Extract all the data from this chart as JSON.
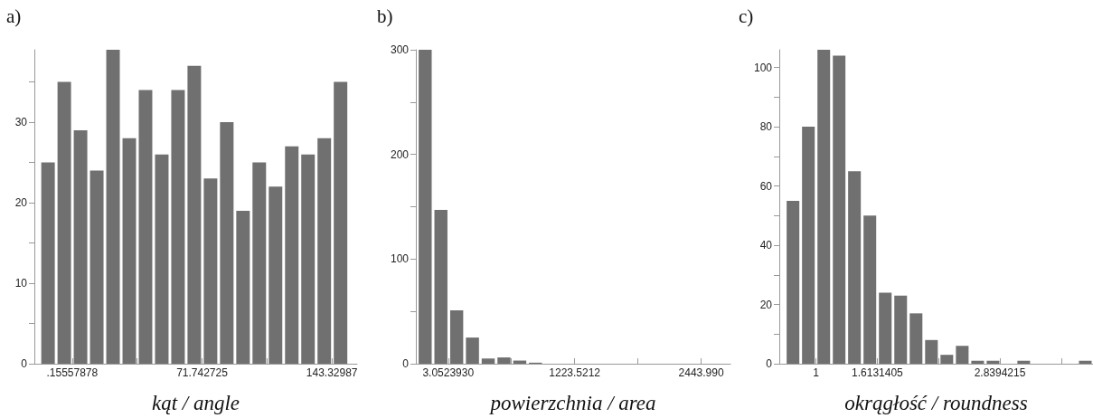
{
  "chart_data": [
    {
      "type": "histogram",
      "title": "a)",
      "xlabel": "kąt / angle",
      "color": "#707070",
      "bins": [
        -17.64,
        -8.68,
        0.27,
        9.23,
        18.19,
        27.15,
        36.1,
        45.06,
        54.02,
        62.97,
        71.93,
        80.89,
        89.85,
        98.8,
        107.76,
        116.72,
        125.67,
        134.63,
        143.59,
        152.55
      ],
      "values": [
        25,
        35,
        29,
        24,
        39,
        28,
        34,
        26,
        34,
        37,
        23,
        30,
        19,
        25,
        22,
        27,
        26,
        28,
        35
      ],
      "xlim": [
        -20.7,
        157.2
      ],
      "xticks": [
        {
          "value": 0.15557878,
          "label": ".15557878"
        },
        {
          "value": 35.94915,
          "label": null
        },
        {
          "value": 71.742725,
          "label": "71.742725"
        },
        {
          "value": 107.5363,
          "label": null
        },
        {
          "value": 143.32987,
          "label": "143.32987"
        }
      ],
      "ylim": [
        0,
        39
      ],
      "yticks": [
        0,
        {
          "value": 5,
          "label": null
        },
        10,
        {
          "value": 15,
          "label": null
        },
        20,
        {
          "value": 25,
          "label": null
        },
        30,
        {
          "value": 35,
          "label": null
        }
      ],
      "grid": false
    },
    {
      "type": "histogram",
      "title": "b)",
      "xlabel": "powierzchnia / area",
      "color": "#707070",
      "bins": [
        -295.3,
        -143.2,
        8.9,
        161.0,
        313.1,
        465.2,
        617.3,
        769.4,
        921.5
      ],
      "values": [
        300,
        147,
        51,
        25,
        5,
        6,
        3,
        1
      ],
      "xlim": [
        -309,
        2727
      ],
      "xticks": [
        {
          "value": 3.052393,
          "label": "3.0523930"
        },
        {
          "value": 613.29,
          "label": null
        },
        {
          "value": 1223.5212,
          "label": "1223.5212"
        },
        {
          "value": 1833.75,
          "label": null
        },
        {
          "value": 2443.99,
          "label": "2443.990"
        }
      ],
      "ylim": [
        0,
        300
      ],
      "yticks": [
        0,
        {
          "value": 50,
          "label": null
        },
        100,
        {
          "value": 150,
          "label": null
        },
        200,
        {
          "value": 250,
          "label": null
        },
        300
      ],
      "grid": false
    },
    {
      "type": "histogram",
      "title": "c)",
      "xlabel": "okrągłość / roundness",
      "color": "#707070",
      "bins": [
        0.693,
        0.847,
        1.001,
        1.155,
        1.308,
        1.462,
        1.616,
        1.77,
        1.924,
        2.078,
        2.232,
        2.386,
        2.54,
        2.694,
        2.848,
        3.001,
        3.155,
        3.309,
        3.463,
        3.617,
        3.771
      ],
      "values": [
        55,
        80,
        106,
        104,
        65,
        50,
        24,
        23,
        17,
        8,
        3,
        6,
        1,
        1,
        0,
        1,
        0,
        0,
        0,
        1
      ],
      "xlim": [
        0.633,
        3.771
      ],
      "xticks": [
        1,
        {
          "value": 1.6131405,
          "label": "1.6131405"
        },
        {
          "value": 2.226281,
          "label": null
        },
        {
          "value": 2.8394215,
          "label": "2.8394215"
        },
        {
          "value": 3.452562,
          "label": null
        }
      ],
      "ylim": [
        0,
        106
      ],
      "yticks": [
        0,
        {
          "value": 10,
          "label": null
        },
        20,
        {
          "value": 30,
          "label": null
        },
        40,
        {
          "value": 50,
          "label": null
        },
        60,
        {
          "value": 70,
          "label": null
        },
        80,
        {
          "value": 90,
          "label": null
        },
        100
      ],
      "grid": false
    }
  ]
}
